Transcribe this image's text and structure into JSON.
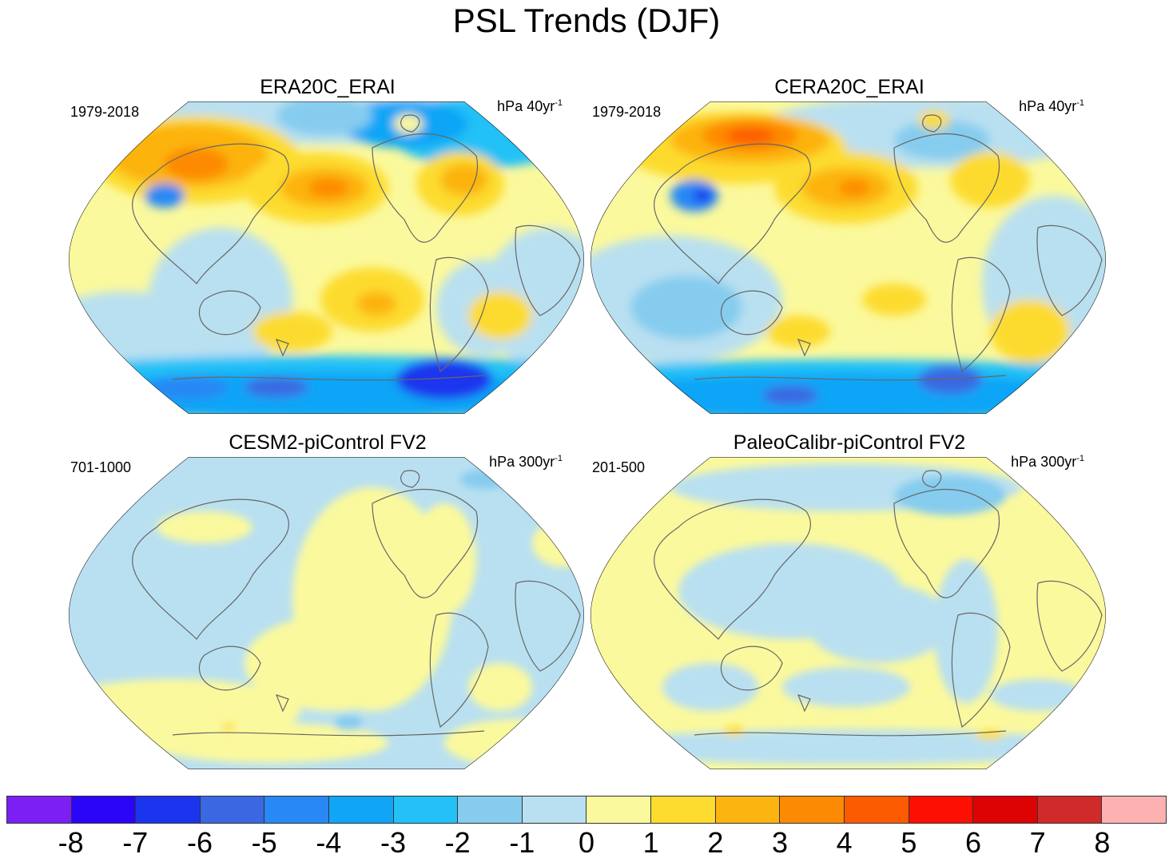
{
  "title": "PSL Trends (DJF)",
  "panels": [
    {
      "title": "ERA20C_ERAI",
      "period": "1979-2018",
      "units_base": "hPa 40yr",
      "units_exp": "-1"
    },
    {
      "title": "CERA20C_ERAI",
      "period": "1979-2018",
      "units_base": "hPa 40yr",
      "units_exp": "-1"
    },
    {
      "title": "CESM2-piControl FV2",
      "period": "701-1000",
      "units_base": "hPa 300yr",
      "units_exp": "-1"
    },
    {
      "title": "PaleoCalibr-piControl FV2",
      "period": "201-500",
      "units_base": "hPa 300yr",
      "units_exp": "-1"
    }
  ],
  "colorbar": {
    "colors": [
      "#7b1ff5",
      "#2a05f7",
      "#1b35ee",
      "#3a68e2",
      "#2888f5",
      "#11a5f7",
      "#23c1f7",
      "#85ccef",
      "#b9e0f1",
      "#fbf99d",
      "#fddb2f",
      "#fcb410",
      "#fd8a03",
      "#fd5b02",
      "#fd0f03",
      "#dd0204",
      "#d12a2a",
      "#fdb1b1"
    ],
    "labels": [
      "-8",
      "-7",
      "-6",
      "-5",
      "-4",
      "-3",
      "-2",
      "-1",
      "0",
      "1",
      "2",
      "3",
      "4",
      "5",
      "6",
      "7",
      "8"
    ]
  },
  "features": {
    "ocean_color": "#b9e0f1",
    "coast_color": "#666666"
  }
}
